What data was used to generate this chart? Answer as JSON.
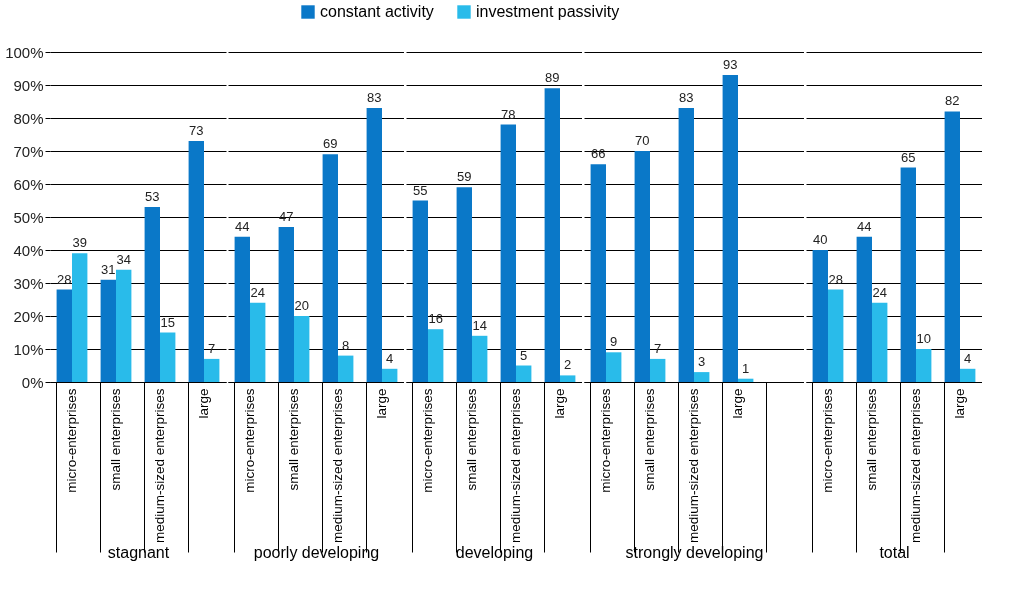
{
  "chart_data": [
    {
      "type": "bar",
      "xlabel": "stagnant",
      "categories": [
        "micro-enterprises",
        "small enterprises",
        "medium-sized enterprises",
        "large"
      ],
      "series": [
        {
          "name": "constant activity",
          "color": "#0a78c8",
          "values": [
            28,
            31,
            53,
            73
          ]
        },
        {
          "name": "investment passivity",
          "color": "#29bbea",
          "values": [
            39,
            34,
            15,
            7
          ]
        }
      ],
      "ylim": [
        0,
        100
      ],
      "yticks": [
        {
          "value": 0,
          "label": "0%"
        },
        {
          "value": 10,
          "label": "10%"
        },
        {
          "value": 20,
          "label": "20%"
        },
        {
          "value": 30,
          "label": "30%"
        },
        {
          "value": 40,
          "label": "40%"
        },
        {
          "value": 50,
          "label": "50%"
        },
        {
          "value": 60,
          "label": "60%"
        },
        {
          "value": 70,
          "label": "70%"
        },
        {
          "value": 80,
          "label": "80%"
        },
        {
          "value": 90,
          "label": "90%"
        },
        {
          "value": 100,
          "label": "100%"
        }
      ],
      "grid": "y",
      "legend": "top",
      "data_labels": true
    },
    {
      "type": "bar",
      "xlabel": "poorly developing",
      "categories": [
        "micro-enterprises",
        "small enterprises",
        "medium-sized enterprises",
        "large"
      ],
      "series": [
        {
          "color": "#0a78c8",
          "values": [
            44,
            47,
            69,
            83
          ]
        },
        {
          "color": "#29bbea",
          "values": [
            24,
            20,
            8,
            4
          ]
        }
      ],
      "ylim": [
        0,
        100
      ],
      "yticks": [
        0,
        10,
        20,
        30,
        40,
        50,
        60,
        70,
        80,
        90,
        100
      ],
      "grid": "y",
      "tick_labels": "x",
      "data_labels": true
    },
    {
      "type": "bar",
      "xlabel": "developing",
      "categories": [
        "micro-enterprises",
        "small enterprises",
        "medium-sized enterprises",
        "large"
      ],
      "series": [
        {
          "color": "#0a78c8",
          "values": [
            55,
            59,
            78,
            89
          ]
        },
        {
          "color": "#29bbea",
          "values": [
            16,
            14,
            5,
            2
          ]
        }
      ],
      "ylim": [
        0,
        100
      ],
      "yticks": [
        0,
        10,
        20,
        30,
        40,
        50,
        60,
        70,
        80,
        90,
        100
      ],
      "grid": "y",
      "tick_labels": "x",
      "data_labels": true
    },
    {
      "type": "bar",
      "xlabel": "strongly developing",
      "categories": [
        "micro-enterprises",
        "small enterprises",
        "medium-sized enterprises",
        "large",
        null
      ],
      "series": [
        {
          "color": "#0a78c8",
          "values": [
            66,
            70,
            83,
            93,
            null
          ]
        },
        {
          "color": "#29bbea",
          "values": [
            9,
            7,
            3,
            1,
            null
          ]
        }
      ],
      "ylim": [
        0,
        100
      ],
      "yticks": [
        0,
        10,
        20,
        30,
        40,
        50,
        60,
        70,
        80,
        90,
        100
      ],
      "grid": "y",
      "tick_labels": "x",
      "data_labels": true
    },
    {
      "type": "bar",
      "xlabel": "total",
      "categories": [
        "micro-enterprises",
        "small enterprises",
        "medium-sized enterprises",
        "large"
      ],
      "series": [
        {
          "color": "#0a78c8",
          "values": [
            40,
            44,
            65,
            82
          ]
        },
        {
          "color": "#29bbea",
          "values": [
            28,
            24,
            10,
            4
          ]
        }
      ],
      "ylim": [
        0,
        100
      ],
      "yticks": [
        0,
        10,
        20,
        30,
        40,
        50,
        60,
        70,
        80,
        90,
        100
      ],
      "grid": "y",
      "tick_labels": "x",
      "data_labels": true
    }
  ]
}
